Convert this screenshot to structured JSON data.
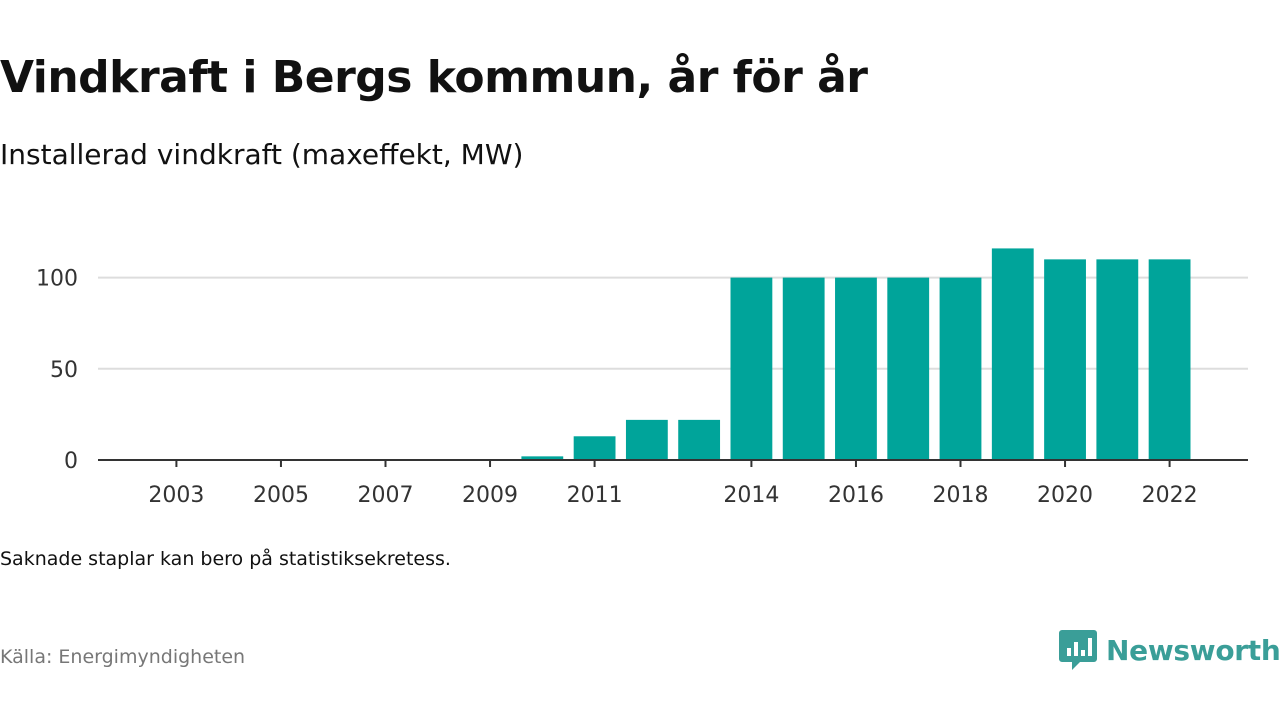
{
  "header": {
    "title": "Vindkraft i Bergs kommun, år för år",
    "subtitle": "Installerad vindkraft (maxeffekt, MW)"
  },
  "footer": {
    "note": "Saknade staplar kan bero på statistiksekretess.",
    "source": "Källa: Energimyndigheten",
    "brand": "Newsworthy"
  },
  "colors": {
    "bar": "#00a49a",
    "grid": "#dddddd",
    "axis": "#333333",
    "brand": "#3a9e98"
  },
  "chart_data": {
    "type": "bar",
    "title": "Vindkraft i Bergs kommun, år för år",
    "subtitle": "Installerad vindkraft (maxeffekt, MW)",
    "xlabel": "",
    "ylabel": "",
    "ylim": [
      0,
      125
    ],
    "yticks": [
      0,
      50,
      100
    ],
    "x_ticks": [
      2003,
      2005,
      2007,
      2009,
      2011,
      2014,
      2016,
      2018,
      2020,
      2022
    ],
    "x_range": [
      2001.5,
      2023.5
    ],
    "grid": true,
    "legend": "none",
    "categories": [
      2002,
      2003,
      2004,
      2005,
      2006,
      2007,
      2008,
      2009,
      2010,
      2011,
      2012,
      2013,
      2014,
      2015,
      2016,
      2017,
      2018,
      2019,
      2020,
      2021,
      2022
    ],
    "values": [
      0,
      0,
      0,
      0,
      0,
      0,
      0,
      0,
      2,
      13,
      22,
      22,
      100,
      100,
      100,
      100,
      100,
      116,
      110,
      110,
      110
    ]
  }
}
